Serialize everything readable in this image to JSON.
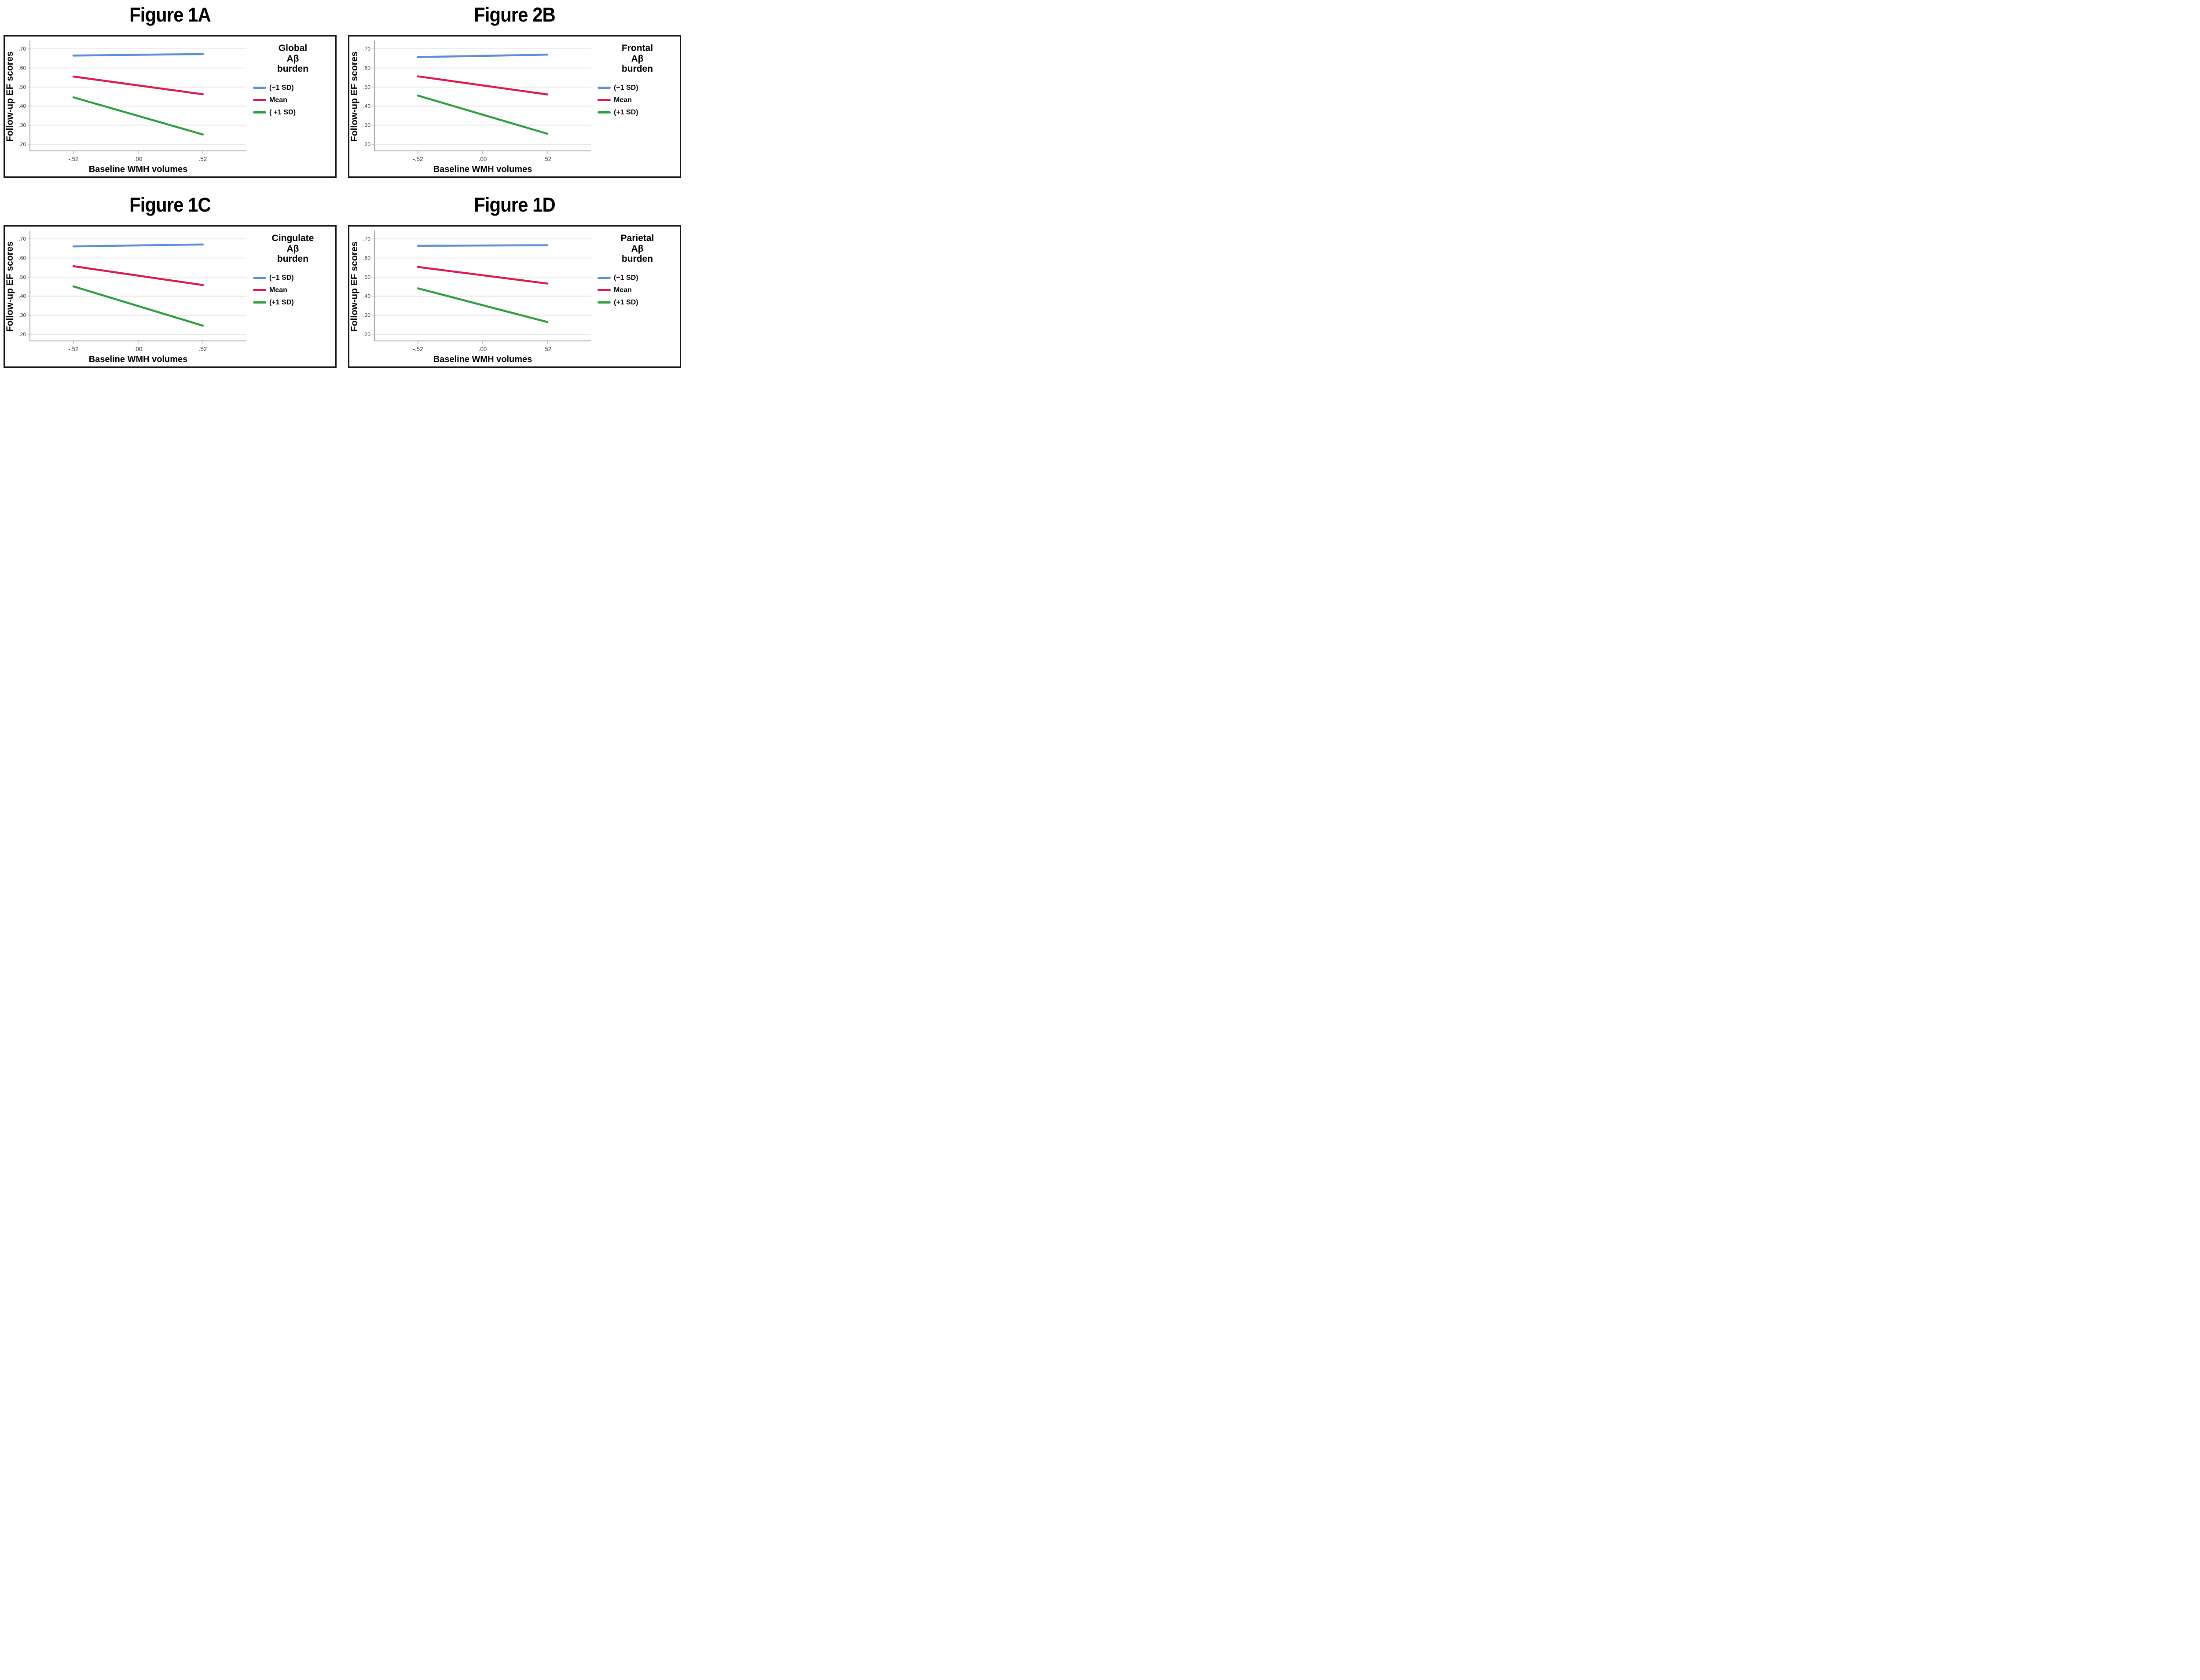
{
  "page": {
    "background": "#ffffff"
  },
  "colors": {
    "minus1sd": "#5b8fd8",
    "mean": "#dc1a4c",
    "plus1sd": "#2f9e3c",
    "gridline": "#dcdcdc",
    "axis": "#a8a8a8",
    "tick_text": "#3c3c3c",
    "panel_border": "#161616"
  },
  "chart_data": [
    {
      "type": "line",
      "title": "Figure 1A",
      "legend_title": "Global Aβ burden",
      "legend_title_lines": [
        "Global",
        "Aβ",
        "burden"
      ],
      "xlabel": "Baseline WMH volumes",
      "ylabel": "Follow-up EF scores",
      "grid": true,
      "legend_position": "right",
      "xlim": [
        -0.87,
        0.87
      ],
      "ylim": [
        0.165,
        0.735
      ],
      "x": [
        -0.52,
        0.52
      ],
      "x_ticks": [
        {
          "value": -0.52,
          "label": "-.52"
        },
        {
          "value": 0.0,
          "label": ".00"
        },
        {
          "value": 0.52,
          "label": ".52"
        }
      ],
      "y_ticks": [
        {
          "value": 0.7,
          "label": ".70"
        },
        {
          "value": 0.6,
          "label": ".60"
        },
        {
          "value": 0.5,
          "label": ".50"
        },
        {
          "value": 0.4,
          "label": ".40"
        },
        {
          "value": 0.3,
          "label": ".30"
        },
        {
          "value": 0.2,
          "label": ".20"
        }
      ],
      "series": [
        {
          "name": "(−1 SD)",
          "color_key": "minus1sd",
          "values": [
            0.665,
            0.673
          ]
        },
        {
          "name": "Mean",
          "color_key": "mean",
          "values": [
            0.555,
            0.462
          ]
        },
        {
          "name": "( +1 SD)",
          "color_key": "plus1sd",
          "values": [
            0.446,
            0.251
          ]
        }
      ]
    },
    {
      "type": "line",
      "title": "Figure 2B",
      "legend_title": "Frontal Aβ burden",
      "legend_title_lines": [
        "Frontal",
        "Aβ",
        "burden"
      ],
      "xlabel": "Baseline WMH volumes",
      "ylabel": "Follow-up EF scores",
      "grid": true,
      "legend_position": "right",
      "xlim": [
        -0.87,
        0.87
      ],
      "ylim": [
        0.165,
        0.735
      ],
      "x": [
        -0.52,
        0.52
      ],
      "x_ticks": [
        {
          "value": -0.52,
          "label": "-.52"
        },
        {
          "value": 0.0,
          "label": ".00"
        },
        {
          "value": 0.52,
          "label": ".52"
        }
      ],
      "y_ticks": [
        {
          "value": 0.7,
          "label": ".70"
        },
        {
          "value": 0.6,
          "label": ".60"
        },
        {
          "value": 0.5,
          "label": ".50"
        },
        {
          "value": 0.4,
          "label": ".40"
        },
        {
          "value": 0.3,
          "label": ".30"
        },
        {
          "value": 0.2,
          "label": ".20"
        }
      ],
      "series": [
        {
          "name": "(−1 SD)",
          "color_key": "minus1sd",
          "values": [
            0.657,
            0.67
          ]
        },
        {
          "name": "Mean",
          "color_key": "mean",
          "values": [
            0.556,
            0.461
          ]
        },
        {
          "name": "(+1 SD)",
          "color_key": "plus1sd",
          "values": [
            0.455,
            0.255
          ]
        }
      ]
    },
    {
      "type": "line",
      "title": "Figure 1C",
      "legend_title": "Cingulate Aβ burden",
      "legend_title_lines": [
        "Cingulate",
        "Aβ",
        "burden"
      ],
      "xlabel": "Baseline WMH volumes",
      "ylabel": "Follow-up EF scores",
      "grid": true,
      "legend_position": "right",
      "xlim": [
        -0.87,
        0.87
      ],
      "ylim": [
        0.165,
        0.735
      ],
      "x": [
        -0.52,
        0.52
      ],
      "x_ticks": [
        {
          "value": -0.52,
          "label": "-.52"
        },
        {
          "value": 0.0,
          "label": ".00"
        },
        {
          "value": 0.52,
          "label": ".52"
        }
      ],
      "y_ticks": [
        {
          "value": 0.7,
          "label": ".70"
        },
        {
          "value": 0.6,
          "label": ".60"
        },
        {
          "value": 0.5,
          "label": ".50"
        },
        {
          "value": 0.4,
          "label": ".40"
        },
        {
          "value": 0.3,
          "label": ".30"
        },
        {
          "value": 0.2,
          "label": ".20"
        }
      ],
      "series": [
        {
          "name": "(−1 SD)",
          "color_key": "minus1sd",
          "values": [
            0.661,
            0.671
          ]
        },
        {
          "name": "Mean",
          "color_key": "mean",
          "values": [
            0.557,
            0.458
          ]
        },
        {
          "name": "(+1 SD)",
          "color_key": "plus1sd",
          "values": [
            0.451,
            0.245
          ]
        }
      ]
    },
    {
      "type": "line",
      "title": "Figure 1D",
      "legend_title": "Parietal Aβ burden",
      "legend_title_lines": [
        "Parietal",
        "Aβ",
        "burden"
      ],
      "xlabel": "Baseline WMH volumes",
      "ylabel": "Follow-up EF scores",
      "grid": true,
      "legend_position": "right",
      "xlim": [
        -0.87,
        0.87
      ],
      "ylim": [
        0.165,
        0.735
      ],
      "x": [
        -0.52,
        0.52
      ],
      "x_ticks": [
        {
          "value": -0.52,
          "label": "-.52"
        },
        {
          "value": 0.0,
          "label": ".00"
        },
        {
          "value": 0.52,
          "label": ".52"
        }
      ],
      "y_ticks": [
        {
          "value": 0.7,
          "label": ".70"
        },
        {
          "value": 0.6,
          "label": ".60"
        },
        {
          "value": 0.5,
          "label": ".50"
        },
        {
          "value": 0.4,
          "label": ".40"
        },
        {
          "value": 0.3,
          "label": ".30"
        },
        {
          "value": 0.2,
          "label": ".20"
        }
      ],
      "series": [
        {
          "name": "(−1 SD)",
          "color_key": "minus1sd",
          "values": [
            0.664,
            0.667
          ]
        },
        {
          "name": "Mean",
          "color_key": "mean",
          "values": [
            0.553,
            0.466
          ]
        },
        {
          "name": "(+1 SD)",
          "color_key": "plus1sd",
          "values": [
            0.441,
            0.264
          ]
        }
      ]
    }
  ]
}
